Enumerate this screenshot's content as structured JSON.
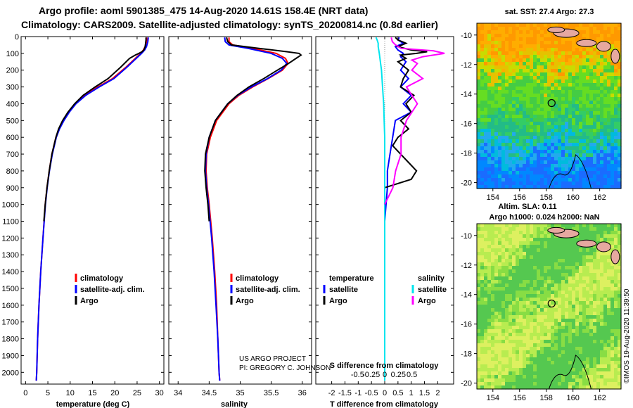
{
  "title_line1": "Argo profile: aoml 5901385_475 14-Aug-2020 14.61S 158.4E (NRT data)",
  "title_line2": "Climatology: CARS2009. Satellite-adjusted climatology: synTS_20200814.nc (0.8d earlier)",
  "credit": [
    "US ARGO PROJECT",
    "PI: GREGORY C. JOHNSON"
  ],
  "timestamp": "©IMOS 19-Aug-2020 11:39:50",
  "colors": {
    "climatology": "#ff0000",
    "satellite": "#0000ff",
    "argo": "#000000",
    "sal_sat": "#00e5ee",
    "sal_argo": "#ff00ff"
  },
  "depth_ticks": [
    "0",
    "100",
    "200",
    "300",
    "400",
    "500",
    "600",
    "700",
    "800",
    "900",
    "1000",
    "1100",
    "1200",
    "1300",
    "1400",
    "1500",
    "1600",
    "1700",
    "1800",
    "1900",
    "2000"
  ],
  "chart_data": [
    {
      "id": "temperature",
      "type": "line",
      "xlabel": "temperature (deg C)",
      "ylabel": "",
      "xlim": [
        -1,
        31
      ],
      "ylim": [
        2070,
        0
      ],
      "xticks": [
        "0",
        "5",
        "10",
        "15",
        "20",
        "25",
        "30"
      ],
      "legend": [
        "climatology",
        "satellite-adj. clim.",
        "Argo"
      ],
      "series": [
        {
          "name": "climatology",
          "color": "#ff0000",
          "depth": [
            5,
            30,
            60,
            80,
            100,
            130,
            180,
            250,
            300,
            350,
            400,
            450,
            500,
            550,
            600,
            700,
            800,
            900,
            1000,
            1200,
            1400,
            1600,
            1800,
            2000,
            2050
          ],
          "values": [
            27.2,
            27.1,
            26.8,
            26.4,
            25.8,
            24.6,
            22.6,
            19.5,
            16.2,
            13.2,
            11.1,
            9.6,
            8.5,
            7.5,
            6.8,
            5.9,
            5.3,
            4.8,
            4.4,
            3.9,
            3.4,
            3.0,
            2.7,
            2.5,
            2.4
          ]
        },
        {
          "name": "satellite-adj. clim.",
          "color": "#0000ff",
          "depth": [
            5,
            30,
            60,
            80,
            100,
            130,
            180,
            250,
            300,
            350,
            400,
            450,
            500,
            550,
            600,
            700,
            800,
            900,
            1000,
            1200,
            1400,
            1600,
            1800,
            2000,
            2050
          ],
          "values": [
            27.5,
            27.4,
            27.1,
            26.7,
            26.0,
            24.8,
            22.8,
            19.8,
            16.5,
            13.5,
            11.3,
            9.8,
            8.6,
            7.6,
            6.9,
            6.0,
            5.35,
            4.85,
            4.45,
            3.9,
            3.4,
            3.0,
            2.7,
            2.5,
            2.4
          ]
        },
        {
          "name": "Argo",
          "color": "#000000",
          "depth": [
            5,
            20,
            40,
            60,
            80,
            90,
            100,
            110,
            130,
            180,
            250,
            300,
            350,
            400,
            450,
            500,
            550,
            600,
            700,
            800,
            900,
            1000,
            1100
          ],
          "values": [
            27.0,
            27.0,
            26.9,
            26.8,
            26.5,
            26.1,
            25.4,
            24.6,
            23.3,
            21.4,
            18.5,
            15.6,
            12.9,
            11.0,
            9.5,
            8.3,
            7.4,
            6.8,
            5.9,
            5.3,
            4.8,
            4.4,
            4.1
          ]
        }
      ]
    },
    {
      "id": "salinity",
      "type": "line",
      "xlabel": "salinity",
      "ylabel": "",
      "xlim": [
        33.85,
        36.15
      ],
      "ylim": [
        2070,
        0
      ],
      "xticks": [
        "34",
        "34.5",
        "35",
        "35.5",
        "36"
      ],
      "legend": [
        "climatology",
        "satellite-adj. clim.",
        "Argo"
      ],
      "series": [
        {
          "name": "climatology",
          "color": "#ff0000",
          "depth": [
            5,
            30,
            50,
            70,
            100,
            130,
            160,
            200,
            250,
            300,
            350,
            400,
            450,
            500,
            600,
            700,
            800,
            900,
            1000,
            1200,
            1400,
            1600,
            1800,
            2000,
            2050
          ],
          "values": [
            34.82,
            34.82,
            34.88,
            35.2,
            35.58,
            35.73,
            35.77,
            35.68,
            35.45,
            35.2,
            34.98,
            34.82,
            34.72,
            34.62,
            34.52,
            34.46,
            34.45,
            34.47,
            34.5,
            34.55,
            34.59,
            34.62,
            34.64,
            34.66,
            34.67
          ]
        },
        {
          "name": "satellite-adj. clim.",
          "color": "#0000ff",
          "depth": [
            5,
            30,
            50,
            70,
            100,
            130,
            160,
            200,
            250,
            300,
            350,
            400,
            450,
            500,
            600,
            700,
            800,
            900,
            1000,
            1200,
            1400,
            1600,
            1800,
            2000,
            2050
          ],
          "values": [
            34.75,
            34.76,
            34.82,
            35.12,
            35.5,
            35.68,
            35.75,
            35.66,
            35.44,
            35.18,
            34.96,
            34.8,
            34.7,
            34.6,
            34.5,
            34.45,
            34.44,
            34.46,
            34.49,
            34.54,
            34.58,
            34.61,
            34.64,
            34.66,
            34.67
          ]
        },
        {
          "name": "Argo",
          "color": "#000000",
          "depth": [
            5,
            30,
            50,
            70,
            90,
            100,
            110,
            130,
            160,
            200,
            250,
            300,
            350,
            400,
            450,
            500,
            600,
            700,
            800,
            900,
            1000,
            1100
          ],
          "values": [
            34.78,
            34.8,
            34.86,
            35.3,
            35.75,
            35.95,
            35.98,
            35.9,
            35.78,
            35.6,
            35.38,
            35.14,
            34.95,
            34.8,
            34.7,
            34.6,
            34.5,
            34.44,
            34.43,
            34.45,
            34.48,
            34.5
          ]
        }
      ]
    },
    {
      "id": "difference",
      "type": "line",
      "xlabel": "T difference from climatology",
      "xlabel2": "S difference from climatology",
      "xlim": [
        -2.6,
        2.6
      ],
      "ylim": [
        2070,
        0
      ],
      "xticks": [
        "-2",
        "-1.5",
        "-1",
        "-0.5",
        "0",
        "0.5",
        "1",
        "1.5",
        "2"
      ],
      "xticks2": [
        "-0.5",
        "-0.25",
        "0",
        "0.25",
        "0.5"
      ],
      "legend_titles": [
        "temperature",
        "salinity"
      ],
      "legend": [
        "satellite",
        "Argo",
        "satellite",
        "Argo"
      ],
      "series": [
        {
          "name": "temperature satellite",
          "color": "#0000ff",
          "depth": [
            5,
            20,
            40,
            60,
            80,
            100,
            120,
            150,
            200,
            250,
            300,
            350,
            400,
            450,
            500,
            600,
            700,
            800,
            900,
            1000,
            1100
          ],
          "values": [
            0.55,
            0.5,
            0.7,
            0.4,
            0.5,
            0.7,
            0.6,
            0.8,
            0.6,
            0.9,
            0.6,
            1.0,
            0.7,
            1.0,
            0.4,
            0.3,
            0.2,
            0.1,
            0.1,
            0.05,
            0.0
          ]
        },
        {
          "name": "temperature Argo",
          "color": "#000000",
          "depth": [
            5,
            20,
            40,
            60,
            80,
            90,
            100,
            110,
            130,
            150,
            200,
            250,
            300,
            350,
            400,
            450,
            500,
            550,
            600,
            650,
            700,
            750,
            800,
            850,
            900
          ],
          "values": [
            0.4,
            0.5,
            0.8,
            0.5,
            1.0,
            1.6,
            1.2,
            0.6,
            0.8,
            0.5,
            0.9,
            0.7,
            0.6,
            1.1,
            0.8,
            1.0,
            0.6,
            0.9,
            0.5,
            0.3,
            0.6,
            0.9,
            1.2,
            1.0,
            0.0
          ]
        },
        {
          "name": "salinity satellite",
          "color": "#00e5ee",
          "depth": [
            5,
            20,
            40,
            60,
            80,
            100,
            150,
            200,
            300,
            400,
            500,
            600,
            700,
            800,
            900,
            1000,
            1100,
            1200,
            1400,
            1600,
            1800,
            2000,
            2050
          ],
          "values": [
            -0.16,
            -0.14,
            -0.12,
            -0.12,
            -0.11,
            -0.1,
            -0.08,
            -0.06,
            -0.04,
            -0.02,
            -0.01,
            0.0,
            0.0,
            0.0,
            0.0,
            0.0,
            0.0,
            0.0,
            0.0,
            0.0,
            0.0,
            0.0,
            0.0
          ]
        },
        {
          "name": "salinity Argo",
          "color": "#ff00ff",
          "depth": [
            5,
            30,
            50,
            70,
            85,
            100,
            120,
            140,
            160,
            200,
            250,
            300,
            400,
            500,
            600,
            700,
            800,
            900,
            1000
          ],
          "values": [
            0.12,
            0.14,
            0.2,
            0.3,
            0.9,
            1.1,
            0.7,
            0.5,
            0.6,
            0.5,
            0.7,
            0.4,
            0.6,
            0.4,
            0.3,
            0.3,
            0.2,
            0.15,
            0.0
          ]
        }
      ]
    }
  ],
  "maps": [
    {
      "title": "sat. SST: 27.4 Argo: 27.3",
      "lon_ticks": [
        "154",
        "156",
        "158",
        "160",
        "162"
      ],
      "lat_ticks": [
        "-10",
        "-12",
        "-14",
        "-16",
        "-18",
        "-20"
      ],
      "marker_lon": 158.4,
      "marker_lat": -14.61
    },
    {
      "title": "Altim. SLA: 0.11",
      "subtitle": "Argo h1000: 0.024 h2000: NaN",
      "lon_ticks": [
        "154",
        "156",
        "158",
        "160",
        "162"
      ],
      "lat_ticks": [
        "-10",
        "-12",
        "-14",
        "-16",
        "-18",
        "-20"
      ],
      "marker_lon": 158.4,
      "marker_lat": -14.61
    }
  ]
}
